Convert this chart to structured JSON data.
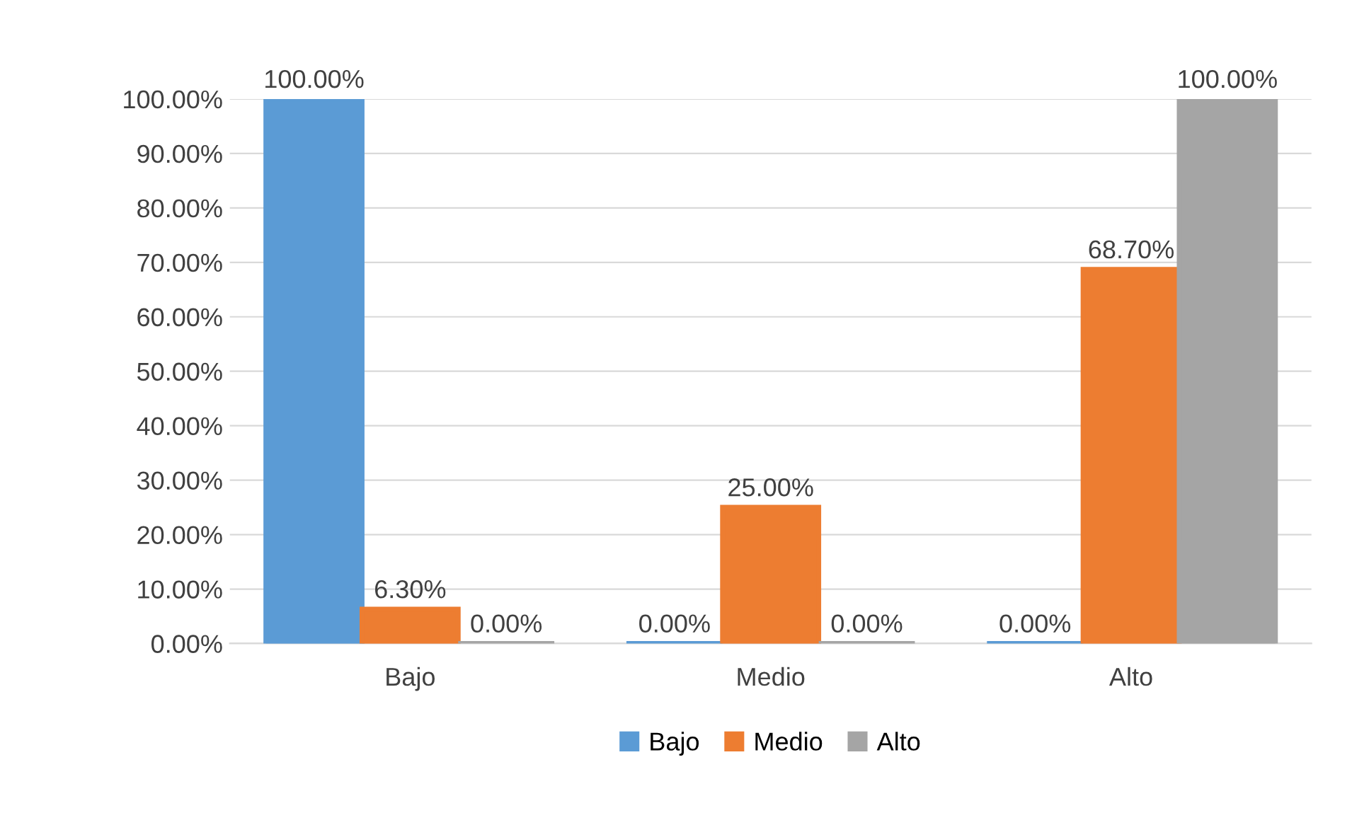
{
  "chart_data": {
    "type": "bar",
    "categories": [
      "Bajo",
      "Medio",
      "Alto"
    ],
    "series": [
      {
        "name": "Bajo",
        "color": "#5b9bd5",
        "values": [
          100,
          0,
          0
        ],
        "value_labels": [
          "100.00%",
          "0.00%",
          "0.00%"
        ]
      },
      {
        "name": "Medio",
        "color": "#ed7d31",
        "values": [
          6.3,
          25,
          68.7
        ],
        "value_labels": [
          "6.30%",
          "25.00%",
          "68.70%"
        ]
      },
      {
        "name": "Alto",
        "color": "#a5a5a5",
        "values": [
          0,
          0,
          100
        ],
        "value_labels": [
          "0.00%",
          "0.00%",
          "100.00%"
        ]
      }
    ],
    "ylim": [
      0,
      100
    ],
    "yticks": [
      {
        "value": 0,
        "label": "0.00%"
      },
      {
        "value": 10,
        "label": "10.00%"
      },
      {
        "value": 20,
        "label": "20.00%"
      },
      {
        "value": 30,
        "label": "30.00%"
      },
      {
        "value": 40,
        "label": "40.00%"
      },
      {
        "value": 50,
        "label": "50.00%"
      },
      {
        "value": 60,
        "label": "60.00%"
      },
      {
        "value": 70,
        "label": "70.00%"
      },
      {
        "value": 80,
        "label": "80.00%"
      },
      {
        "value": 90,
        "label": "90.00%"
      },
      {
        "value": 100,
        "label": "100.00%"
      }
    ],
    "grid": "y",
    "legend": "bottom"
  }
}
